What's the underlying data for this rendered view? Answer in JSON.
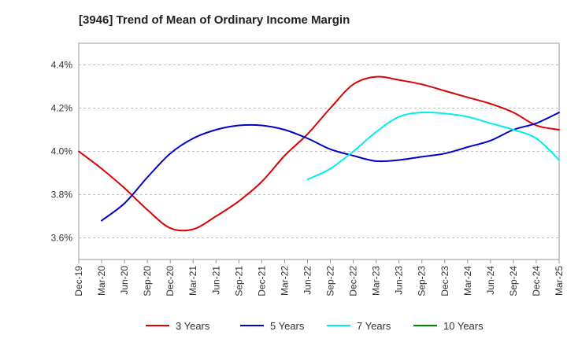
{
  "chart_data": {
    "type": "line",
    "title": "[3946]  Trend of Mean of Ordinary Income Margin",
    "xlabel": "",
    "ylabel": "",
    "x_ticks": [
      "Dec-19",
      "Mar-20",
      "Jun-20",
      "Sep-20",
      "Dec-20",
      "Mar-21",
      "Jun-21",
      "Sep-21",
      "Dec-21",
      "Mar-22",
      "Jun-22",
      "Sep-22",
      "Dec-22",
      "Mar-23",
      "Jun-23",
      "Sep-23",
      "Dec-23",
      "Mar-24",
      "Jun-24",
      "Sep-24",
      "Dec-24",
      "Mar-25"
    ],
    "y_ticks": [
      3.6,
      3.8,
      4.0,
      4.2,
      4.4
    ],
    "y_tick_labels": [
      "3.6%",
      "3.8%",
      "4.0%",
      "4.2%",
      "4.4%"
    ],
    "ylim": [
      3.5,
      4.5
    ],
    "grid": "horizontal dashed",
    "legend_position": "bottom",
    "series": [
      {
        "name": "3 Years",
        "color": "#dd0000",
        "points": [
          [
            "Dec-19",
            4.0
          ],
          [
            "Mar-20",
            3.92
          ],
          [
            "Jun-20",
            3.83
          ],
          [
            "Sep-20",
            3.73
          ],
          [
            "Dec-20",
            3.645
          ],
          [
            "Mar-21",
            3.64
          ],
          [
            "Jun-21",
            3.7
          ],
          [
            "Sep-21",
            3.77
          ],
          [
            "Dec-21",
            3.86
          ],
          [
            "Mar-22",
            3.98
          ],
          [
            "Jun-22",
            4.08
          ],
          [
            "Sep-22",
            4.2
          ],
          [
            "Dec-22",
            4.31
          ],
          [
            "Mar-23",
            4.345
          ],
          [
            "Jun-23",
            4.33
          ],
          [
            "Sep-23",
            4.31
          ],
          [
            "Dec-23",
            4.28
          ],
          [
            "Mar-24",
            4.25
          ],
          [
            "Jun-24",
            4.22
          ],
          [
            "Sep-24",
            4.18
          ],
          [
            "Dec-24",
            4.12
          ],
          [
            "Mar-25",
            4.1
          ]
        ]
      },
      {
        "name": "5 Years",
        "color": "#0000cc",
        "points": [
          [
            "Mar-20",
            3.68
          ],
          [
            "Jun-20",
            3.76
          ],
          [
            "Sep-20",
            3.88
          ],
          [
            "Dec-20",
            3.99
          ],
          [
            "Mar-21",
            4.06
          ],
          [
            "Jun-21",
            4.1
          ],
          [
            "Sep-21",
            4.12
          ],
          [
            "Dec-21",
            4.12
          ],
          [
            "Mar-22",
            4.1
          ],
          [
            "Jun-22",
            4.06
          ],
          [
            "Sep-22",
            4.01
          ],
          [
            "Dec-22",
            3.98
          ],
          [
            "Mar-23",
            3.955
          ],
          [
            "Jun-23",
            3.96
          ],
          [
            "Sep-23",
            3.975
          ],
          [
            "Dec-23",
            3.99
          ],
          [
            "Mar-24",
            4.02
          ],
          [
            "Jun-24",
            4.05
          ],
          [
            "Sep-24",
            4.1
          ],
          [
            "Dec-24",
            4.13
          ],
          [
            "Mar-25",
            4.18
          ]
        ]
      },
      {
        "name": "7 Years",
        "color": "#00eeee",
        "points": [
          [
            "Jun-22",
            3.87
          ],
          [
            "Sep-22",
            3.92
          ],
          [
            "Dec-22",
            4.0
          ],
          [
            "Mar-23",
            4.09
          ],
          [
            "Jun-23",
            4.16
          ],
          [
            "Sep-23",
            4.18
          ],
          [
            "Dec-23",
            4.175
          ],
          [
            "Mar-24",
            4.16
          ],
          [
            "Jun-24",
            4.13
          ],
          [
            "Sep-24",
            4.1
          ],
          [
            "Dec-24",
            4.06
          ],
          [
            "Mar-25",
            3.96
          ]
        ]
      },
      {
        "name": "10 Years",
        "color": "#008800",
        "points": []
      }
    ]
  }
}
